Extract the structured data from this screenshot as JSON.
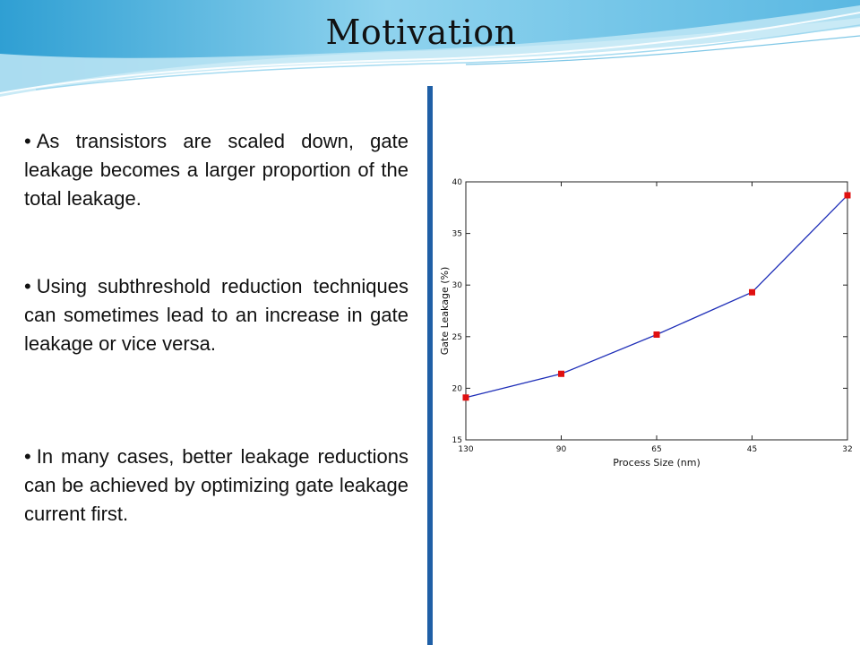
{
  "slide": {
    "title": "Motivation",
    "bullets": [
      "As transistors are scaled down, gate leakage becomes a larger proportion of the total leakage.",
      "Using subthreshold reduction techniques can sometimes lead to an increase in gate leakage or vice versa.",
      "In many cases, better leakage reductions can be achieved by optimizing gate leakage current first."
    ],
    "bullet_glyph": "•"
  },
  "colors": {
    "banner_light": "#dff3fa",
    "banner_mid": "#8fd0ea",
    "banner_dark": "#3aa6d6",
    "divider": "#1f5fa6",
    "line": "#1f2fb8",
    "marker": "#e01010"
  },
  "chart_data": {
    "type": "line",
    "xlabel": "Process Size (nm)",
    "ylabel": "Gate Leakage (%)",
    "categories": [
      "130",
      "90",
      "65",
      "45",
      "32"
    ],
    "values": [
      19.1,
      21.4,
      25.2,
      29.3,
      38.7
    ],
    "ylim": [
      15,
      40
    ],
    "yticks": [
      15,
      20,
      25,
      30,
      35,
      40
    ],
    "grid": false,
    "marker": "square"
  }
}
